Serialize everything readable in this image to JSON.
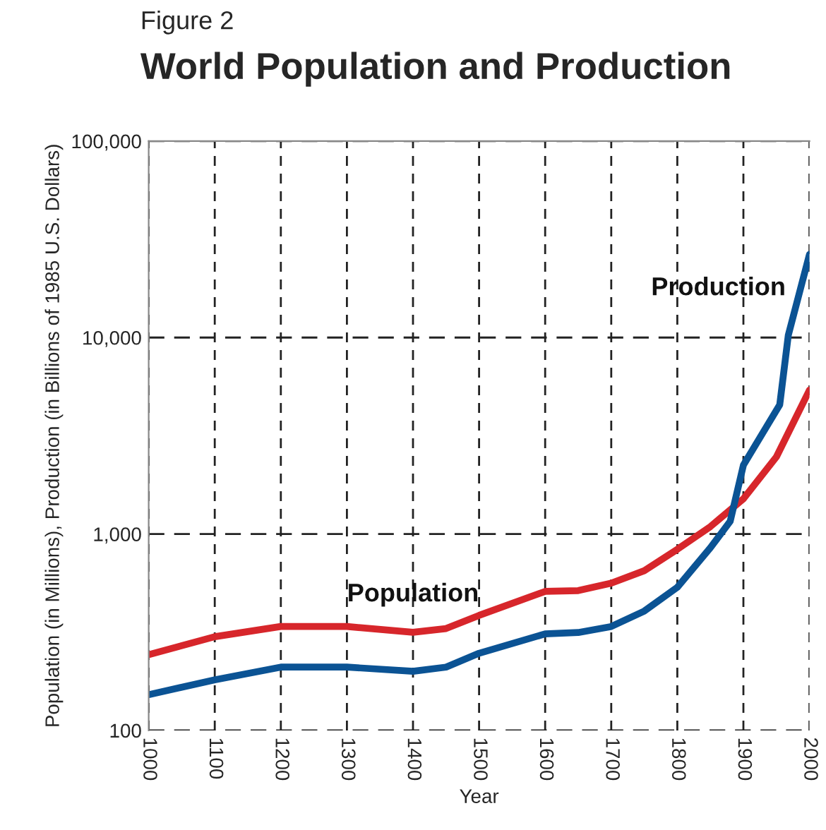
{
  "chart_data": {
    "type": "line",
    "subtitle": "Figure 2",
    "title": "World Population and Production",
    "xlabel": "Year",
    "ylabel": "Population (in Millions), Production (in Billions of 1985 U.S. Dollars)",
    "series": [
      {
        "name": "Population",
        "color": "#d7262b",
        "x": [
          1000,
          1100,
          1200,
          1300,
          1400,
          1450,
          1500,
          1600,
          1650,
          1700,
          1750,
          1800,
          1850,
          1900,
          1950,
          2000
        ],
        "values": [
          243,
          300,
          338,
          338,
          316,
          330,
          385,
          510,
          515,
          562,
          650,
          835,
          1090,
          1510,
          2470,
          5400
        ]
      },
      {
        "name": "Production",
        "color": "#0b5394",
        "x": [
          1000,
          1100,
          1200,
          1300,
          1400,
          1450,
          1500,
          1600,
          1650,
          1700,
          1750,
          1800,
          1850,
          1880,
          1900,
          1955,
          1968,
          2000
        ],
        "values": [
          152,
          181,
          210,
          210,
          200,
          210,
          247,
          310,
          315,
          338,
          405,
          535,
          850,
          1160,
          2240,
          4550,
          10300,
          26500
        ]
      }
    ],
    "log": true,
    "xlim": [
      1000,
      2000
    ],
    "xticks": [
      1000,
      1100,
      1200,
      1300,
      1400,
      1500,
      1600,
      1700,
      1800,
      1900,
      2000
    ],
    "ylim": [
      100,
      100000
    ],
    "yticks": [
      {
        "value": 100,
        "label": "100"
      },
      {
        "value": 1000,
        "label": "1,000"
      },
      {
        "value": 10000,
        "label": "10,000"
      },
      {
        "value": 100000,
        "label": "100,000"
      }
    ],
    "grid": true,
    "line_style": "solid",
    "legend": false
  }
}
